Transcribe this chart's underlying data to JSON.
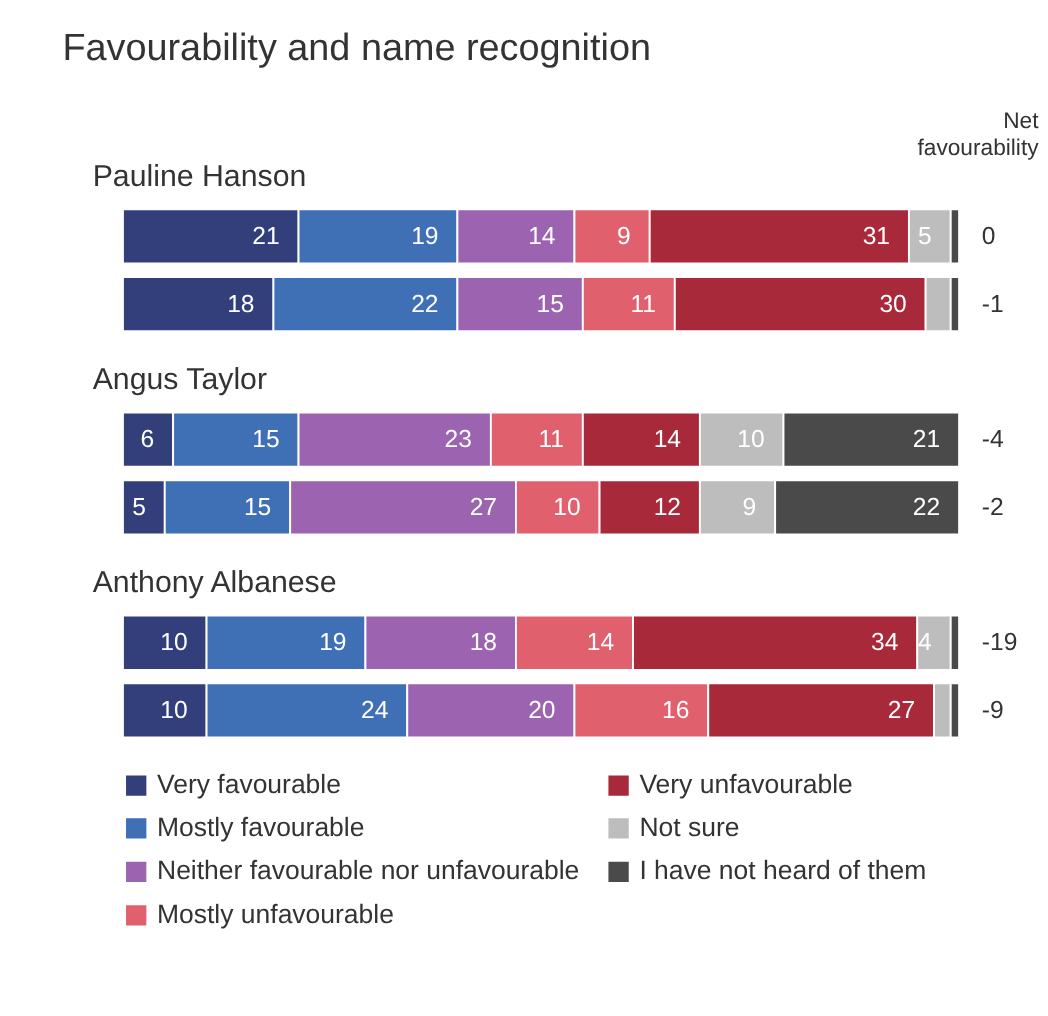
{
  "chart_data": {
    "type": "bar",
    "orientation": "horizontal",
    "stacked": true,
    "title": "Favourability and name recognition",
    "categories": [
      null,
      null,
      null,
      null,
      null,
      null
    ],
    "series": [
      {
        "name": "Very favourable",
        "color": "#333f7a",
        "values": [
          21,
          18,
          6,
          5,
          10,
          10
        ],
        "value_labels": [
          "21",
          "18",
          "6",
          "5",
          "10",
          "10"
        ]
      },
      {
        "name": "Mostly favourable",
        "color": "#3f6fb5",
        "values": [
          19,
          22,
          15,
          15,
          19,
          24
        ],
        "value_labels": [
          "19",
          "22",
          "15",
          "15",
          "19",
          "24"
        ]
      },
      {
        "name": "Neither favourable nor unfavourable",
        "color": "#9b63b0",
        "values": [
          14,
          15,
          23,
          27,
          18,
          20
        ],
        "value_labels": [
          "14",
          "15",
          "23",
          "27",
          "18",
          "20"
        ]
      },
      {
        "name": "Mostly unfavourable",
        "color": "#e0606e",
        "values": [
          9,
          11,
          11,
          10,
          14,
          16
        ],
        "value_labels": [
          "9",
          "11",
          "11",
          "10",
          "14",
          "16"
        ]
      },
      {
        "name": "Very unfavourable",
        "color": "#a8293a",
        "values": [
          31,
          30,
          14,
          12,
          34,
          27
        ],
        "value_labels": [
          "31",
          "30",
          "14",
          "12",
          "34",
          "27"
        ]
      },
      {
        "name": "Not sure",
        "color": "#bdbdbd",
        "values": [
          5,
          3,
          10,
          9,
          4,
          2
        ],
        "value_labels": [
          "5",
          null,
          "10",
          "9",
          "4",
          null
        ]
      },
      {
        "name": "I have not heard of them",
        "color": "#4a4a4a",
        "values": [
          1,
          1,
          21,
          22,
          1,
          1
        ],
        "value_labels": [
          null,
          null,
          "21",
          "22",
          null,
          null
        ]
      }
    ],
    "xlim": [
      0,
      100
    ],
    "tick_labels": false,
    "legend": "bottom",
    "annotations": [
      "Pauline Hanson",
      "Angus Taylor",
      "Anthony Albanese",
      "Net favourability",
      "0",
      "-1",
      "-4",
      "-2",
      "-19",
      "-9"
    ]
  }
}
